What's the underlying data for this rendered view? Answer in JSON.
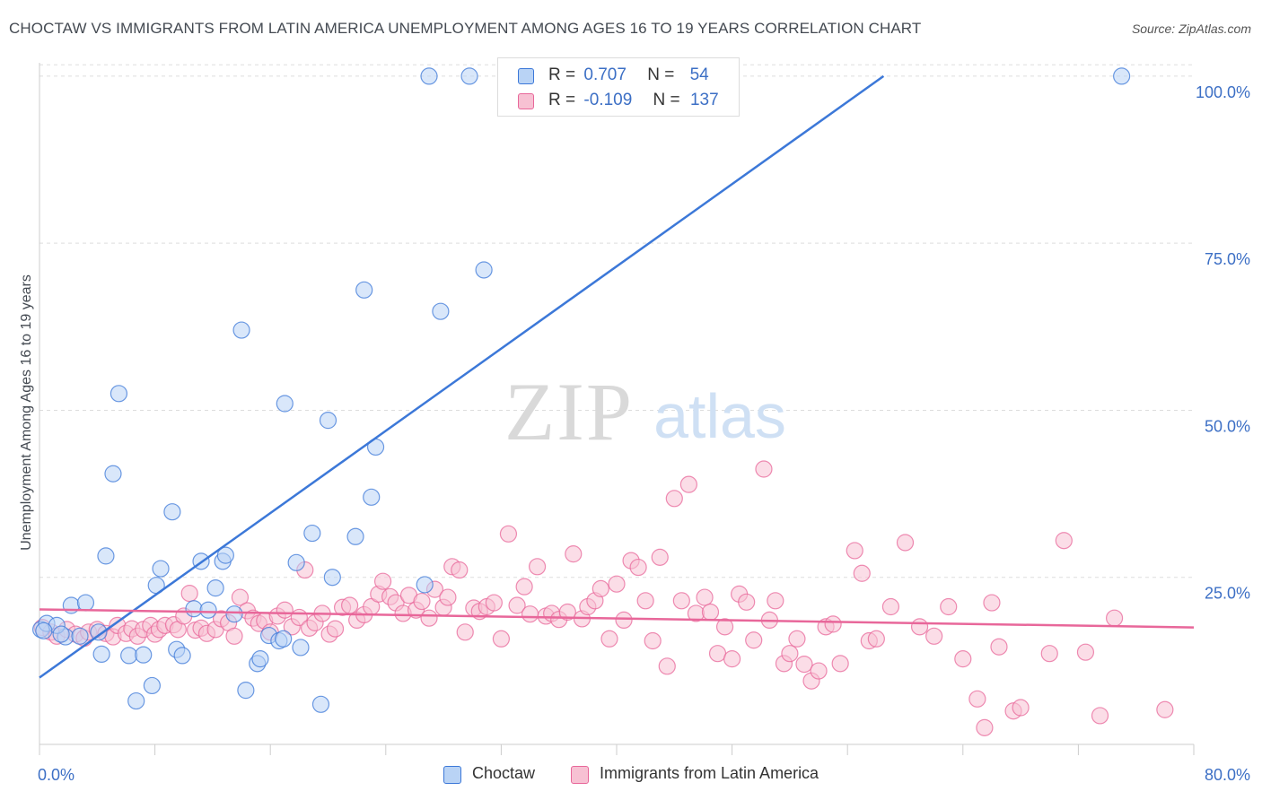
{
  "title": "CHOCTAW VS IMMIGRANTS FROM LATIN AMERICA UNEMPLOYMENT AMONG AGES 16 TO 19 YEARS CORRELATION CHART",
  "source": "Source: ZipAtlas.com",
  "watermark": {
    "zip": "ZIP",
    "atlas": "atlas"
  },
  "colors": {
    "blue": "#3c78d8",
    "blue_fill": "#b9d3f5",
    "pink": "#e8679a",
    "pink_fill": "#f7c1d3",
    "axis_text": "#3c6fc5",
    "grid": "#dddddd"
  },
  "legend_top": [
    {
      "r_label": "R =",
      "r_value": "0.707",
      "n_label": "N =",
      "n_value": "54"
    },
    {
      "r_label": "R =",
      "r_value": "-0.109",
      "n_label": "N =",
      "n_value": "137"
    }
  ],
  "legend_bottom": [
    "Choctaw",
    "Immigrants from Latin America"
  ],
  "chart_data": {
    "type": "scatter",
    "title": "CHOCTAW VS IMMIGRANTS FROM LATIN AMERICA UNEMPLOYMENT AMONG AGES 16 TO 19 YEARS CORRELATION CHART",
    "xlabel": "",
    "ylabel": "Unemployment Among Ages 16 to 19 years",
    "xlim": [
      0,
      80
    ],
    "ylim": [
      0,
      102
    ],
    "x_tick_labels": [
      "0.0%",
      "80.0%"
    ],
    "y_ticks": [
      25,
      50,
      75,
      100
    ],
    "y_tick_labels": [
      "25.0%",
      "50.0%",
      "75.0%",
      "100.0%"
    ],
    "grid": true,
    "legend_position": "top-center",
    "series": [
      {
        "name": "Choctaw",
        "color": "#3c78d8",
        "trend": {
          "x": [
            0,
            58.5
          ],
          "y": [
            10,
            100
          ]
        },
        "points": [
          [
            0.1,
            17.2
          ],
          [
            0.5,
            18.1
          ],
          [
            1.8,
            16.1
          ],
          [
            2.2,
            20.8
          ],
          [
            3.2,
            21.2
          ],
          [
            4.1,
            16.8
          ],
          [
            4.3,
            13.5
          ],
          [
            4.6,
            28.2
          ],
          [
            5.1,
            40.5
          ],
          [
            5.5,
            52.5
          ],
          [
            6.2,
            13.3
          ],
          [
            6.7,
            6.5
          ],
          [
            7.2,
            13.4
          ],
          [
            7.8,
            8.8
          ],
          [
            8.1,
            23.8
          ],
          [
            8.4,
            26.3
          ],
          [
            9.2,
            34.8
          ],
          [
            9.5,
            14.2
          ],
          [
            9.9,
            13.3
          ],
          [
            10.7,
            20.3
          ],
          [
            11.2,
            27.4
          ],
          [
            11.7,
            20.1
          ],
          [
            12.2,
            23.4
          ],
          [
            12.7,
            27.4
          ],
          [
            12.9,
            28.3
          ],
          [
            13.5,
            19.5
          ],
          [
            14.0,
            62.0
          ],
          [
            14.3,
            8.1
          ],
          [
            15.1,
            12.1
          ],
          [
            15.3,
            12.8
          ],
          [
            15.9,
            16.3
          ],
          [
            16.6,
            15.5
          ],
          [
            16.9,
            15.8
          ],
          [
            17.0,
            51.0
          ],
          [
            17.8,
            27.2
          ],
          [
            18.1,
            14.5
          ],
          [
            18.9,
            31.6
          ],
          [
            19.5,
            6.0
          ],
          [
            20.0,
            48.5
          ],
          [
            20.3,
            25.0
          ],
          [
            21.9,
            31.1
          ],
          [
            22.5,
            68.0
          ],
          [
            23.0,
            37.0
          ],
          [
            23.3,
            44.5
          ],
          [
            26.7,
            23.9
          ],
          [
            27.0,
            100
          ],
          [
            27.8,
            64.8
          ],
          [
            29.8,
            100
          ],
          [
            30.8,
            71.0
          ],
          [
            1.2,
            17.8
          ],
          [
            1.5,
            16.5
          ],
          [
            2.8,
            16.2
          ],
          [
            0.3,
            17.0
          ],
          [
            75.0,
            100
          ]
        ]
      },
      {
        "name": "Immigrants from Latin America",
        "color": "#e8679a",
        "trend": {
          "x": [
            0,
            80
          ],
          "y": [
            20.2,
            17.5
          ]
        },
        "points": [
          [
            0.2,
            17.5
          ],
          [
            0.8,
            16.8
          ],
          [
            1.2,
            16.2
          ],
          [
            1.9,
            17.2
          ],
          [
            2.5,
            16.5
          ],
          [
            3.1,
            15.9
          ],
          [
            3.4,
            16.8
          ],
          [
            4.0,
            17.2
          ],
          [
            4.6,
            16.6
          ],
          [
            5.1,
            16.1
          ],
          [
            5.4,
            17.8
          ],
          [
            6.0,
            16.6
          ],
          [
            6.4,
            17.3
          ],
          [
            6.8,
            16.2
          ],
          [
            7.2,
            17.2
          ],
          [
            7.7,
            17.8
          ],
          [
            8.0,
            16.5
          ],
          [
            8.3,
            17.2
          ],
          [
            8.7,
            17.8
          ],
          [
            9.3,
            17.9
          ],
          [
            9.6,
            17.2
          ],
          [
            10.0,
            19.2
          ],
          [
            10.4,
            22.6
          ],
          [
            10.8,
            17.1
          ],
          [
            11.2,
            17.4
          ],
          [
            11.6,
            16.6
          ],
          [
            12.2,
            17.2
          ],
          [
            12.6,
            18.8
          ],
          [
            13.1,
            18.2
          ],
          [
            13.5,
            16.2
          ],
          [
            13.9,
            22.0
          ],
          [
            14.4,
            20.0
          ],
          [
            14.8,
            18.9
          ],
          [
            15.2,
            18.1
          ],
          [
            15.6,
            18.5
          ],
          [
            16.0,
            16.8
          ],
          [
            16.5,
            19.2
          ],
          [
            17.0,
            20.1
          ],
          [
            17.5,
            17.6
          ],
          [
            18.0,
            19.0
          ],
          [
            18.4,
            26.1
          ],
          [
            18.7,
            17.4
          ],
          [
            19.1,
            18.2
          ],
          [
            19.6,
            19.6
          ],
          [
            20.1,
            16.5
          ],
          [
            20.5,
            17.3
          ],
          [
            21.0,
            20.5
          ],
          [
            21.5,
            20.8
          ],
          [
            22.0,
            18.6
          ],
          [
            22.5,
            19.4
          ],
          [
            23.0,
            20.6
          ],
          [
            23.5,
            22.5
          ],
          [
            23.8,
            24.4
          ],
          [
            24.3,
            22.1
          ],
          [
            24.7,
            21.2
          ],
          [
            25.2,
            19.6
          ],
          [
            25.6,
            22.3
          ],
          [
            26.1,
            20.1
          ],
          [
            26.5,
            21.4
          ],
          [
            27.0,
            18.9
          ],
          [
            27.4,
            23.2
          ],
          [
            28.0,
            20.5
          ],
          [
            28.3,
            22.0
          ],
          [
            28.6,
            26.6
          ],
          [
            29.1,
            26.1
          ],
          [
            29.5,
            16.8
          ],
          [
            30.1,
            20.4
          ],
          [
            30.5,
            19.9
          ],
          [
            31.0,
            20.6
          ],
          [
            31.5,
            21.2
          ],
          [
            32.0,
            15.8
          ],
          [
            32.5,
            31.5
          ],
          [
            33.1,
            20.8
          ],
          [
            33.6,
            23.6
          ],
          [
            34.0,
            19.5
          ],
          [
            34.5,
            26.6
          ],
          [
            35.1,
            19.2
          ],
          [
            35.5,
            19.6
          ],
          [
            36.0,
            18.7
          ],
          [
            36.6,
            19.8
          ],
          [
            37.0,
            28.5
          ],
          [
            37.6,
            18.8
          ],
          [
            38.0,
            20.6
          ],
          [
            38.5,
            21.5
          ],
          [
            38.9,
            23.3
          ],
          [
            39.5,
            15.8
          ],
          [
            40.0,
            24.0
          ],
          [
            40.5,
            18.6
          ],
          [
            41.0,
            27.5
          ],
          [
            41.5,
            26.5
          ],
          [
            42.0,
            21.5
          ],
          [
            42.5,
            15.5
          ],
          [
            43.0,
            28.0
          ],
          [
            43.5,
            11.7
          ],
          [
            44.0,
            36.8
          ],
          [
            44.5,
            21.5
          ],
          [
            45.0,
            38.9
          ],
          [
            45.5,
            19.6
          ],
          [
            46.1,
            22.0
          ],
          [
            46.5,
            19.8
          ],
          [
            47.0,
            13.6
          ],
          [
            47.5,
            17.6
          ],
          [
            48.0,
            12.8
          ],
          [
            48.5,
            22.5
          ],
          [
            49.0,
            21.3
          ],
          [
            49.5,
            15.6
          ],
          [
            50.2,
            41.2
          ],
          [
            50.6,
            18.6
          ],
          [
            51.0,
            21.5
          ],
          [
            51.6,
            12.1
          ],
          [
            52.0,
            13.6
          ],
          [
            52.5,
            15.8
          ],
          [
            53.0,
            12.0
          ],
          [
            53.5,
            9.5
          ],
          [
            54.0,
            11.0
          ],
          [
            54.5,
            17.6
          ],
          [
            55.0,
            18.0
          ],
          [
            55.5,
            12.1
          ],
          [
            56.5,
            29.0
          ],
          [
            57.0,
            25.6
          ],
          [
            57.5,
            15.5
          ],
          [
            58.0,
            15.8
          ],
          [
            59.0,
            20.6
          ],
          [
            60.0,
            30.2
          ],
          [
            61.0,
            17.6
          ],
          [
            62.0,
            16.2
          ],
          [
            63.0,
            20.6
          ],
          [
            64.0,
            12.8
          ],
          [
            65.0,
            6.8
          ],
          [
            65.5,
            2.5
          ],
          [
            66.0,
            21.2
          ],
          [
            66.5,
            14.6
          ],
          [
            67.5,
            5.0
          ],
          [
            68.0,
            5.5
          ],
          [
            70.0,
            13.6
          ],
          [
            71.0,
            30.5
          ],
          [
            72.5,
            13.8
          ],
          [
            73.5,
            4.3
          ],
          [
            74.5,
            18.9
          ],
          [
            78.0,
            5.2
          ]
        ]
      }
    ]
  }
}
